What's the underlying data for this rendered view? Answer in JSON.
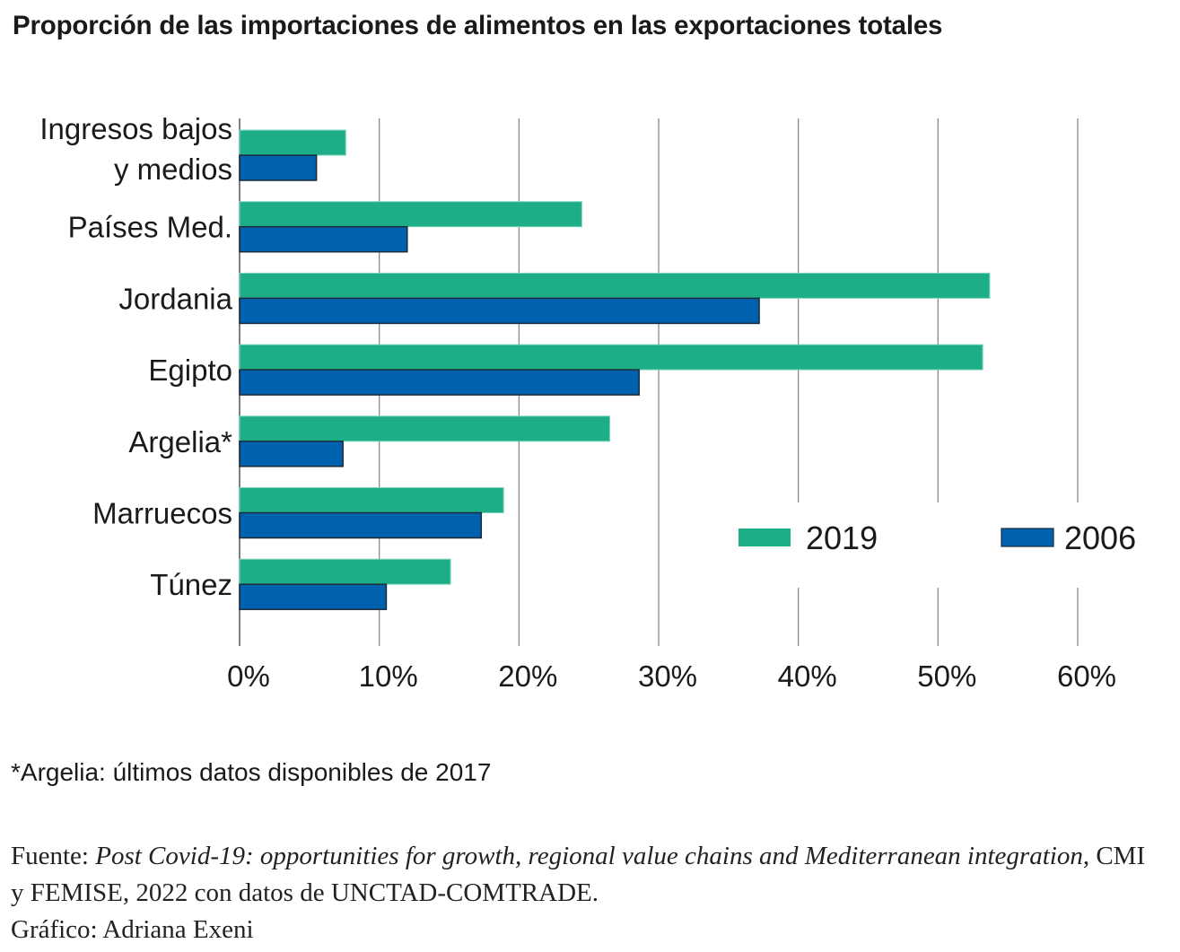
{
  "title": "Proporción de las importaciones de alimentos en las exportaciones totales",
  "chart_data": {
    "type": "bar",
    "orientation": "horizontal",
    "title": "Proporción de las importaciones de alimentos en las exportaciones totales",
    "categories": [
      [
        "Ingresos bajos",
        "y medios"
      ],
      [
        "Países Med."
      ],
      [
        "Jordania"
      ],
      [
        "Egipto"
      ],
      [
        "Argelia*"
      ],
      [
        "Marruecos"
      ],
      [
        "Túnez"
      ]
    ],
    "series": [
      {
        "name": "2019",
        "color": "#1dae87",
        "values": [
          7.6,
          24.5,
          53.7,
          53.2,
          26.5,
          18.9,
          15.1
        ]
      },
      {
        "name": "2006",
        "color": "#0061ae",
        "values": [
          5.5,
          12.0,
          37.2,
          28.6,
          7.4,
          17.3,
          10.5
        ]
      }
    ],
    "xlabel": "",
    "ylabel": "",
    "xlim": [
      0,
      60
    ],
    "x_ticks": [
      0,
      10,
      20,
      30,
      40,
      50,
      60
    ],
    "x_tick_labels": [
      "0%",
      "10%",
      "20%",
      "30%",
      "40%",
      "50%",
      "60%"
    ],
    "grid": "vertical",
    "legend_position": "right-middle"
  },
  "legend": [
    {
      "label": "2019",
      "color": "#1dae87"
    },
    {
      "label": "2006",
      "color": "#0061ae"
    }
  ],
  "note": "*Argelia: últimos datos disponibles de 2017",
  "source": {
    "prefix": "Fuente: ",
    "title_italic": "Post Covid-19: opportunities for growth, regional value chains and Mediterranean integration",
    "rest": ", CMI y FEMISE, 2022 con datos de UNCTAD-COMTRADE.",
    "credit": "Gráfico: Adriana Exeni"
  }
}
